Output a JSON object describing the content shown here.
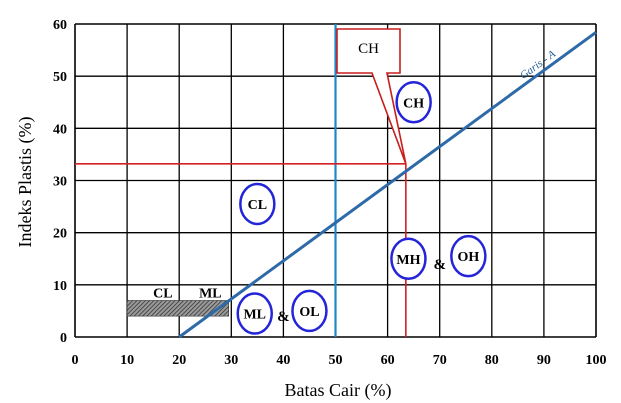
{
  "chart_data": {
    "type": "line",
    "xlabel": "Batas Cair (%)",
    "ylabel": "Indeks Plastis (%)",
    "xlim": [
      0,
      100
    ],
    "ylim": [
      0,
      60
    ],
    "xticks": [
      0,
      10,
      20,
      30,
      40,
      50,
      60,
      70,
      80,
      90,
      100
    ],
    "yticks": [
      0,
      10,
      20,
      30,
      40,
      50,
      60
    ],
    "grid": true,
    "series": [
      {
        "name": "Garis - A",
        "x": [
          20,
          100
        ],
        "y": [
          0,
          58.4
        ],
        "color": "#2e6aa8"
      }
    ],
    "reference_lines": [
      {
        "orientation": "vertical",
        "x": 50,
        "color": "#1e88c9"
      },
      {
        "orientation": "vertical",
        "x": 63.5,
        "y_to": 33.2,
        "color": "#d42020"
      },
      {
        "orientation": "horizontal",
        "y": 33.2,
        "x_to": 63.5,
        "color": "#d42020"
      }
    ],
    "hatched_zone": {
      "labels": [
        "CL",
        "ML"
      ],
      "x": [
        10,
        29.5
      ],
      "y": [
        4,
        7
      ]
    },
    "zones": [
      {
        "label": "CH",
        "x": 65,
        "y": 45,
        "circled": true
      },
      {
        "label": "CL",
        "x": 35,
        "y": 25.5,
        "circled": true
      },
      {
        "label": "MH",
        "x": 64,
        "y": 15,
        "circled": true
      },
      {
        "label": "&",
        "x": 70,
        "y": 14,
        "circled": false
      },
      {
        "label": "OH",
        "x": 75.5,
        "y": 15.5,
        "circled": true
      },
      {
        "label": "ML",
        "x": 34.5,
        "y": 4.5,
        "circled": true
      },
      {
        "label": "&",
        "x": 40,
        "y": 4,
        "circled": false
      },
      {
        "label": "OL",
        "x": 45,
        "y": 5,
        "circled": true
      }
    ],
    "callout": {
      "text": "CH",
      "target_x": 63.5,
      "target_y": 33.2
    },
    "colors": {
      "grid": "#000000",
      "a_line": "#2e6aa8",
      "blue_line": "#1e88c9",
      "red_line": "#d42020",
      "circle": "#2424d8",
      "callout_border": "#c81e1e"
    }
  }
}
